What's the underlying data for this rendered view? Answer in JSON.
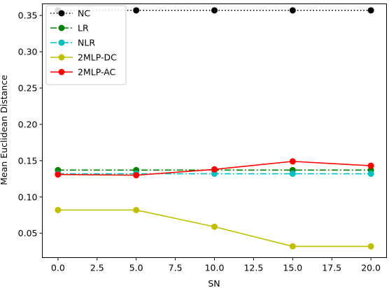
{
  "chart_data": {
    "type": "line",
    "title": "",
    "xlabel": "SN",
    "ylabel": "Mean Euclidean Distance",
    "x": [
      0,
      5,
      10,
      15,
      20
    ],
    "xlim": [
      -1,
      21
    ],
    "ylim": [
      0.0165,
      0.366
    ],
    "xticks": [
      0.0,
      2.5,
      5.0,
      7.5,
      10.0,
      12.5,
      15.0,
      17.5,
      20.0
    ],
    "xtick_labels": [
      "0.0",
      "2.5",
      "5.0",
      "7.5",
      "10.0",
      "12.5",
      "15.0",
      "17.5",
      "20.0"
    ],
    "yticks": [
      0.05,
      0.1,
      0.15,
      0.2,
      0.25,
      0.3,
      0.35
    ],
    "ytick_labels": [
      "0.05",
      "0.10",
      "0.15",
      "0.20",
      "0.25",
      "0.30",
      "0.35"
    ],
    "grid": false,
    "legend_position": "upper-left",
    "series": [
      {
        "name": "NC",
        "color": "#000000",
        "dash": "dotted",
        "values": [
          0.357,
          0.357,
          0.357,
          0.357,
          0.357
        ]
      },
      {
        "name": "LR",
        "color": "#008000",
        "dash": "dashdot",
        "values": [
          0.137,
          0.137,
          0.137,
          0.137,
          0.137
        ]
      },
      {
        "name": "NLR",
        "color": "#00bfbf",
        "dash": "dashdot",
        "values": [
          0.132,
          0.132,
          0.132,
          0.132,
          0.132
        ]
      },
      {
        "name": "2MLP-DC",
        "color": "#bfbf00",
        "dash": "solid",
        "values": [
          0.082,
          0.082,
          0.059,
          0.032,
          0.032
        ]
      },
      {
        "name": "2MLP-AC",
        "color": "#ff0000",
        "dash": "solid",
        "values": [
          0.131,
          0.13,
          0.138,
          0.149,
          0.143
        ]
      }
    ]
  }
}
